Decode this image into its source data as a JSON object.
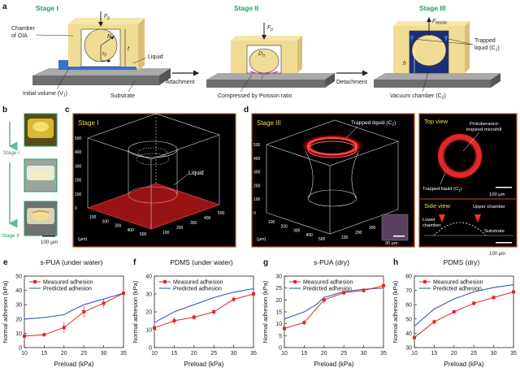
{
  "panels": {
    "a": {
      "letter": "a",
      "stage1": "Stage I",
      "stage2": "Stage II",
      "stage3": "Stage III",
      "chamber": "Chamber",
      "of_oia": "of OIA",
      "liquid": "Liquid",
      "initial_volume": "Initial volume (V",
      "initial_volume_sub": "1",
      "substrate": "Substrate",
      "attachment": "Attachment",
      "detachment": "Detachment",
      "compressed": "Compressed by Poisson ratio",
      "trapped": "Trapped",
      "trapped2": "liquid (C",
      "trapped2_sub": "1",
      "vacuum": "Vacuum chamber (C",
      "vacuum_sub": "2",
      "fp": "F",
      "fp_sub": "p",
      "felastic": "F",
      "felastic_sub": "elastic",
      "R": "R",
      "r0": "r",
      "r0_sub": "0",
      "t": "t",
      "h": "h",
      "Da": "D",
      "Da_sub": "a",
      "r": "r"
    },
    "b": {
      "letter": "b",
      "stage1": "Stage I",
      "stage2": "Stage II",
      "scale": "100 μm"
    },
    "c": {
      "letter": "c",
      "stage": "Stage I",
      "liquid": "Liquid",
      "unit": "(μm)",
      "zticks": [
        "0",
        "100",
        "200",
        "300",
        "400",
        "500"
      ],
      "xticks": [
        "100",
        "200",
        "300",
        "400",
        "500"
      ],
      "yticks": [
        "100",
        "200",
        "300",
        "400",
        "500"
      ]
    },
    "d": {
      "letter": "d",
      "stage": "Stage III",
      "trapped": "Trapped liquid (C",
      "trapped_sub": "1",
      "trapped_end": ")",
      "unit": "(μm)",
      "scale": "30 μm",
      "zticks": [
        "0",
        "100",
        "200",
        "300",
        "400",
        "500"
      ],
      "xticks": [
        "100",
        "200",
        "300",
        "400",
        "500"
      ],
      "yticks": [
        "100",
        "200",
        "300",
        "400",
        "500"
      ],
      "top_view": "Top view",
      "protub1": "Protuberance-",
      "protub2": "inspired microhill",
      "trapped_top": "Trapped liquid (C",
      "trapped_top_sub": "1",
      "scale_top": "100 μm",
      "side_view": "Side view",
      "upper": "Upper chamber",
      "lower1": "Lower",
      "lower2": "chamber",
      "substrate": "Substrate",
      "scale_side": "100 μm"
    }
  },
  "legend": {
    "measured": "Measured adhesion",
    "predicted": "Predicted adhesion"
  },
  "colors": {
    "measured": "#d92a2a",
    "predicted": "#3a5fa8",
    "stage_green": "#2a9a5e",
    "chamber": "#f0dc95",
    "blue": "#3a6fd0"
  },
  "chart_data": [
    {
      "letter": "e",
      "title": "s-PUA (under water)",
      "type": "line",
      "xlabel": "Preload (kPa)",
      "ylabel": "Normal adhesion (kPa)",
      "xlim": [
        10,
        35
      ],
      "ylim": [
        0,
        50
      ],
      "xticks": [
        "10",
        "15",
        "20",
        "25",
        "30",
        "35"
      ],
      "yticks": [
        "0",
        "10",
        "20",
        "30",
        "40",
        "50"
      ],
      "measured": {
        "x": [
          10,
          15,
          20,
          25,
          30,
          35
        ],
        "y": [
          8,
          9,
          14,
          25,
          31,
          38
        ],
        "err": [
          2,
          1.5,
          4,
          4,
          3,
          6
        ]
      },
      "predicted": {
        "x": [
          10,
          15,
          20,
          22,
          25,
          30,
          35
        ],
        "y": [
          20,
          21,
          23,
          26,
          30,
          34,
          38
        ]
      }
    },
    {
      "letter": "f",
      "title": "PDMS (under water)",
      "type": "line",
      "xlabel": "Preload (kPa)",
      "ylabel": "Normal adhesion (kPa)",
      "xlim": [
        10,
        35
      ],
      "ylim": [
        0,
        40
      ],
      "xticks": [
        "10",
        "15",
        "20",
        "25",
        "30",
        "35"
      ],
      "yticks": [
        "0",
        "10",
        "20",
        "30",
        "40"
      ],
      "measured": {
        "x": [
          10,
          15,
          20,
          25,
          30,
          35
        ],
        "y": [
          11,
          15,
          17,
          20,
          27,
          30
        ],
        "err": [
          2,
          2,
          1.5,
          1.5,
          1.5,
          2
        ]
      },
      "predicted": {
        "x": [
          10,
          15,
          20,
          25,
          30,
          35
        ],
        "y": [
          14,
          20,
          24,
          28,
          31,
          33
        ]
      }
    },
    {
      "letter": "g",
      "title": "s-PUA (dry)",
      "type": "line",
      "xlabel": "Preload (kPa)",
      "ylabel": "Normal adhesion (kPa)",
      "xlim": [
        10,
        35
      ],
      "ylim": [
        0,
        30
      ],
      "xticks": [
        "10",
        "15",
        "20",
        "25",
        "30",
        "35"
      ],
      "yticks": [
        "0",
        "5",
        "10",
        "15",
        "20",
        "25",
        "30"
      ],
      "measured": {
        "x": [
          10,
          15,
          20,
          25,
          30,
          35
        ],
        "y": [
          8,
          10.5,
          20,
          23,
          24,
          26
        ],
        "err": [
          1,
          1,
          1.5,
          1,
          1,
          2.5
        ]
      },
      "predicted": {
        "x": [
          10,
          15,
          18,
          20,
          25,
          30,
          35
        ],
        "y": [
          12,
          15,
          18,
          21,
          23.5,
          24.5,
          25
        ]
      }
    },
    {
      "letter": "h",
      "title": "PDMS (dry)",
      "type": "line",
      "xlabel": "Preload (kPa)",
      "ylabel": "Normal adhesion (kPa)",
      "xlim": [
        10,
        35
      ],
      "ylim": [
        30,
        80
      ],
      "xticks": [
        "10",
        "15",
        "20",
        "25",
        "30",
        "35"
      ],
      "yticks": [
        "30",
        "40",
        "50",
        "60",
        "70",
        "80"
      ],
      "measured": {
        "x": [
          10,
          15,
          20,
          25,
          30,
          35
        ],
        "y": [
          37,
          48,
          55,
          61,
          65,
          69
        ],
        "err": [
          1.5,
          1.5,
          1.5,
          1.5,
          1.5,
          1.5
        ]
      },
      "predicted": {
        "x": [
          10,
          15,
          20,
          25,
          30,
          35
        ],
        "y": [
          45,
          57,
          64,
          69,
          72,
          74
        ]
      }
    }
  ]
}
